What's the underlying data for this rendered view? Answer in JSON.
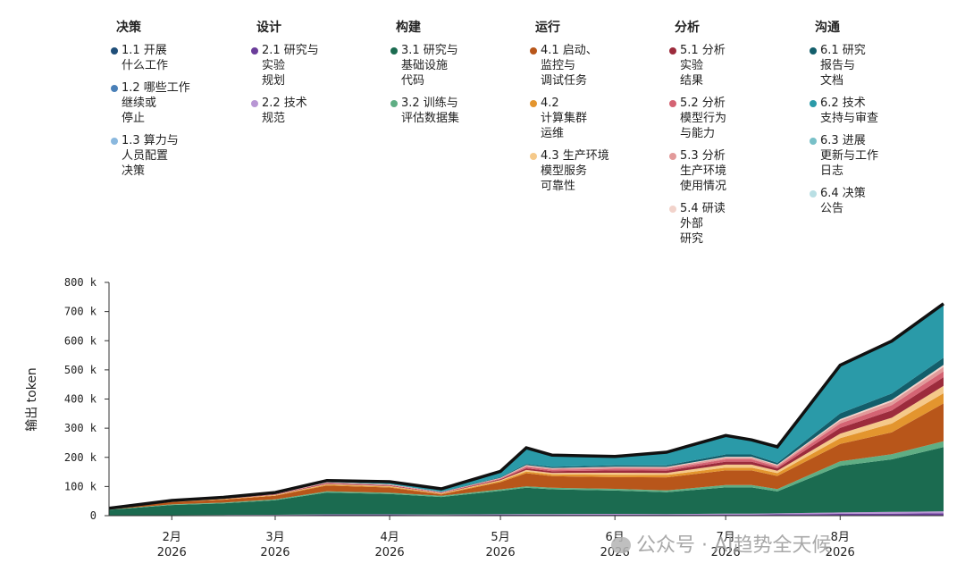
{
  "legend": {
    "groups": [
      {
        "title": "决策",
        "items": [
          {
            "label": "1.1 开展\n什么工作",
            "color": "#1f4e79"
          },
          {
            "label": "1.2 哪些工作\n继续或\n停止",
            "color": "#4a80b8"
          },
          {
            "label": "1.3 算力与\n人员配置\n决策",
            "color": "#8ab8de"
          }
        ]
      },
      {
        "title": "设计",
        "items": [
          {
            "label": "2.1 研究与\n实验\n规划",
            "color": "#6a3d9a"
          },
          {
            "label": "2.2 技术\n规范",
            "color": "#b896d4"
          }
        ]
      },
      {
        "title": "构建",
        "items": [
          {
            "label": "3.1 研究与\n基础设施\n代码",
            "color": "#1b6b50"
          },
          {
            "label": "3.2 训练与\n评估数据集",
            "color": "#5fae84"
          }
        ]
      },
      {
        "title": "运行",
        "items": [
          {
            "label": "4.1 启动、\n监控与\n调试任务",
            "color": "#b8561a"
          },
          {
            "label": "4.2\n计算集群\n运维",
            "color": "#e3952e"
          },
          {
            "label": "4.3 生产环境\n模型服务\n可靠性",
            "color": "#f5c98a"
          }
        ]
      },
      {
        "title": "分析",
        "items": [
          {
            "label": "5.1 分析\n实验\n结果",
            "color": "#9c2b3c"
          },
          {
            "label": "5.2 分析\n模型行为\n与能力",
            "color": "#d46373"
          },
          {
            "label": "5.3 分析\n生产环境\n使用情况",
            "color": "#e29a9a"
          },
          {
            "label": "5.4 研读\n外部\n研究",
            "color": "#f2d3cb"
          }
        ]
      },
      {
        "title": "沟通",
        "items": [
          {
            "label": "6.1 研究\n报告与\n文档",
            "color": "#135e6b"
          },
          {
            "label": "6.2 技术\n支持与审查",
            "color": "#2a9aa8"
          },
          {
            "label": "6.3 进展\n更新与工作\n日志",
            "color": "#78c0c8"
          },
          {
            "label": "6.4 决策\n公告",
            "color": "#b9dfe4"
          }
        ]
      }
    ]
  },
  "chart_data": {
    "type": "area",
    "stacked": true,
    "ylabel": "输出 token",
    "ylim": [
      0,
      800000
    ],
    "yticks": [
      0,
      100000,
      200000,
      300000,
      400000,
      500000,
      600000,
      700000,
      800000
    ],
    "ytick_labels": [
      "0",
      "100 k",
      "200 k",
      "300 k",
      "400 k",
      "500 k",
      "600 k",
      "700 k",
      "800 k"
    ],
    "xlim": [
      "2026-01-15",
      "2026-08-29"
    ],
    "xticks": [
      {
        "date": "2026-02-01",
        "label_month": "2月",
        "label_year": "2026"
      },
      {
        "date": "2026-03-01",
        "label_month": "3月",
        "label_year": "2026"
      },
      {
        "date": "2026-04-01",
        "label_month": "4月",
        "label_year": "2026"
      },
      {
        "date": "2026-05-01",
        "label_month": "5月",
        "label_year": "2026"
      },
      {
        "date": "2026-06-01",
        "label_month": "6月",
        "label_year": "2026"
      },
      {
        "date": "2026-07-01",
        "label_month": "7月",
        "label_year": "2026"
      },
      {
        "date": "2026-08-01",
        "label_month": "8月",
        "label_year": "2026"
      }
    ],
    "x": [
      "2026-01-15",
      "2026-02-01",
      "2026-02-15",
      "2026-03-01",
      "2026-03-15",
      "2026-04-01",
      "2026-04-15",
      "2026-05-01",
      "2026-05-08",
      "2026-05-15",
      "2026-06-01",
      "2026-06-15",
      "2026-07-01",
      "2026-07-08",
      "2026-07-15",
      "2026-08-01",
      "2026-08-15",
      "2026-08-29"
    ],
    "series": [
      {
        "color": "#1f4e79",
        "values": [
          0,
          0,
          0,
          0,
          0,
          0,
          0,
          0,
          0,
          0,
          0,
          0,
          0,
          0,
          0,
          0,
          0,
          0
        ]
      },
      {
        "color": "#4a80b8",
        "values": [
          0,
          0,
          0,
          0,
          0,
          0,
          0,
          0,
          0,
          0,
          0,
          0,
          0,
          0,
          0,
          0,
          0,
          0
        ]
      },
      {
        "color": "#8ab8de",
        "values": [
          0,
          0,
          0,
          0,
          0,
          0,
          0,
          0,
          0,
          0,
          0,
          0,
          0,
          0,
          0,
          0,
          0,
          0
        ]
      },
      {
        "color": "#6a3d9a",
        "values": [
          0,
          1000,
          1500,
          2000,
          3000,
          3000,
          2500,
          3000,
          3500,
          3500,
          3500,
          3000,
          4000,
          4000,
          4500,
          6000,
          7000,
          8000
        ]
      },
      {
        "color": "#b896d4",
        "values": [
          0,
          500,
          800,
          1000,
          1500,
          1500,
          1500,
          2000,
          2000,
          2000,
          2500,
          2500,
          3000,
          3000,
          3500,
          5000,
          6000,
          7000
        ]
      },
      {
        "color": "#1b6b50",
        "values": [
          20000,
          35000,
          40000,
          50000,
          75000,
          70000,
          60000,
          80000,
          90000,
          85000,
          80000,
          75000,
          90000,
          90000,
          75000,
          160000,
          180000,
          220000
        ]
      },
      {
        "color": "#5fae84",
        "values": [
          1000,
          2000,
          2500,
          3000,
          4000,
          4000,
          4000,
          5000,
          5000,
          5000,
          6000,
          6000,
          8000,
          8000,
          8000,
          15000,
          18000,
          20000
        ]
      },
      {
        "color": "#b8561a",
        "values": [
          3000,
          8000,
          10000,
          12000,
          20000,
          18000,
          5000,
          25000,
          45000,
          40000,
          40000,
          45000,
          50000,
          50000,
          45000,
          60000,
          75000,
          130000
        ]
      },
      {
        "color": "#e3952e",
        "values": [
          500,
          1000,
          1500,
          2000,
          3000,
          3000,
          2000,
          4000,
          6000,
          6000,
          8000,
          8000,
          10000,
          10000,
          10000,
          20000,
          30000,
          35000
        ]
      },
      {
        "color": "#f5c98a",
        "values": [
          500,
          1000,
          1000,
          1500,
          2000,
          2000,
          1500,
          3000,
          5000,
          5000,
          7000,
          7000,
          10000,
          10000,
          8000,
          15000,
          20000,
          25000
        ]
      },
      {
        "color": "#9c2b3c",
        "values": [
          500,
          1000,
          1000,
          1500,
          2000,
          2000,
          1500,
          3000,
          6000,
          6000,
          8000,
          8000,
          10000,
          10000,
          8000,
          20000,
          25000,
          30000
        ]
      },
      {
        "color": "#d46373",
        "values": [
          0,
          500,
          1000,
          1000,
          2000,
          2000,
          1500,
          2000,
          5000,
          5000,
          6000,
          6000,
          8000,
          8000,
          6000,
          15000,
          18000,
          20000
        ]
      },
      {
        "color": "#e29a9a",
        "values": [
          0,
          500,
          500,
          1000,
          1000,
          1000,
          1000,
          2000,
          4000,
          4000,
          5000,
          5000,
          6000,
          6000,
          5000,
          10000,
          12000,
          15000
        ]
      },
      {
        "color": "#f2d3cb",
        "values": [
          0,
          0,
          500,
          500,
          1000,
          1000,
          500,
          1000,
          2000,
          2000,
          2000,
          2000,
          3000,
          3000,
          2000,
          5000,
          6000,
          7000
        ]
      },
      {
        "color": "#135e6b",
        "values": [
          0,
          500,
          500,
          1000,
          1000,
          1000,
          1000,
          2000,
          4000,
          4000,
          5000,
          5000,
          8000,
          8000,
          6000,
          20000,
          22000,
          25000
        ]
      },
      {
        "color": "#2a9aa8",
        "values": [
          0,
          1000,
          2000,
          3000,
          5000,
          8000,
          10000,
          20000,
          55000,
          40000,
          30000,
          45000,
          65000,
          50000,
          55000,
          165000,
          180000,
          185000
        ]
      },
      {
        "color": "#78c0c8",
        "values": [
          0,
          0,
          0,
          0,
          0,
          0,
          0,
          0,
          0,
          0,
          0,
          0,
          0,
          0,
          0,
          0,
          0,
          0
        ]
      },
      {
        "color": "#b9dfe4",
        "values": [
          0,
          0,
          0,
          0,
          0,
          0,
          0,
          0,
          0,
          0,
          0,
          0,
          0,
          0,
          0,
          0,
          0,
          0
        ]
      }
    ],
    "outline_color": "#111111"
  },
  "watermark": {
    "text": "公众号 · AI趋势全天候"
  }
}
